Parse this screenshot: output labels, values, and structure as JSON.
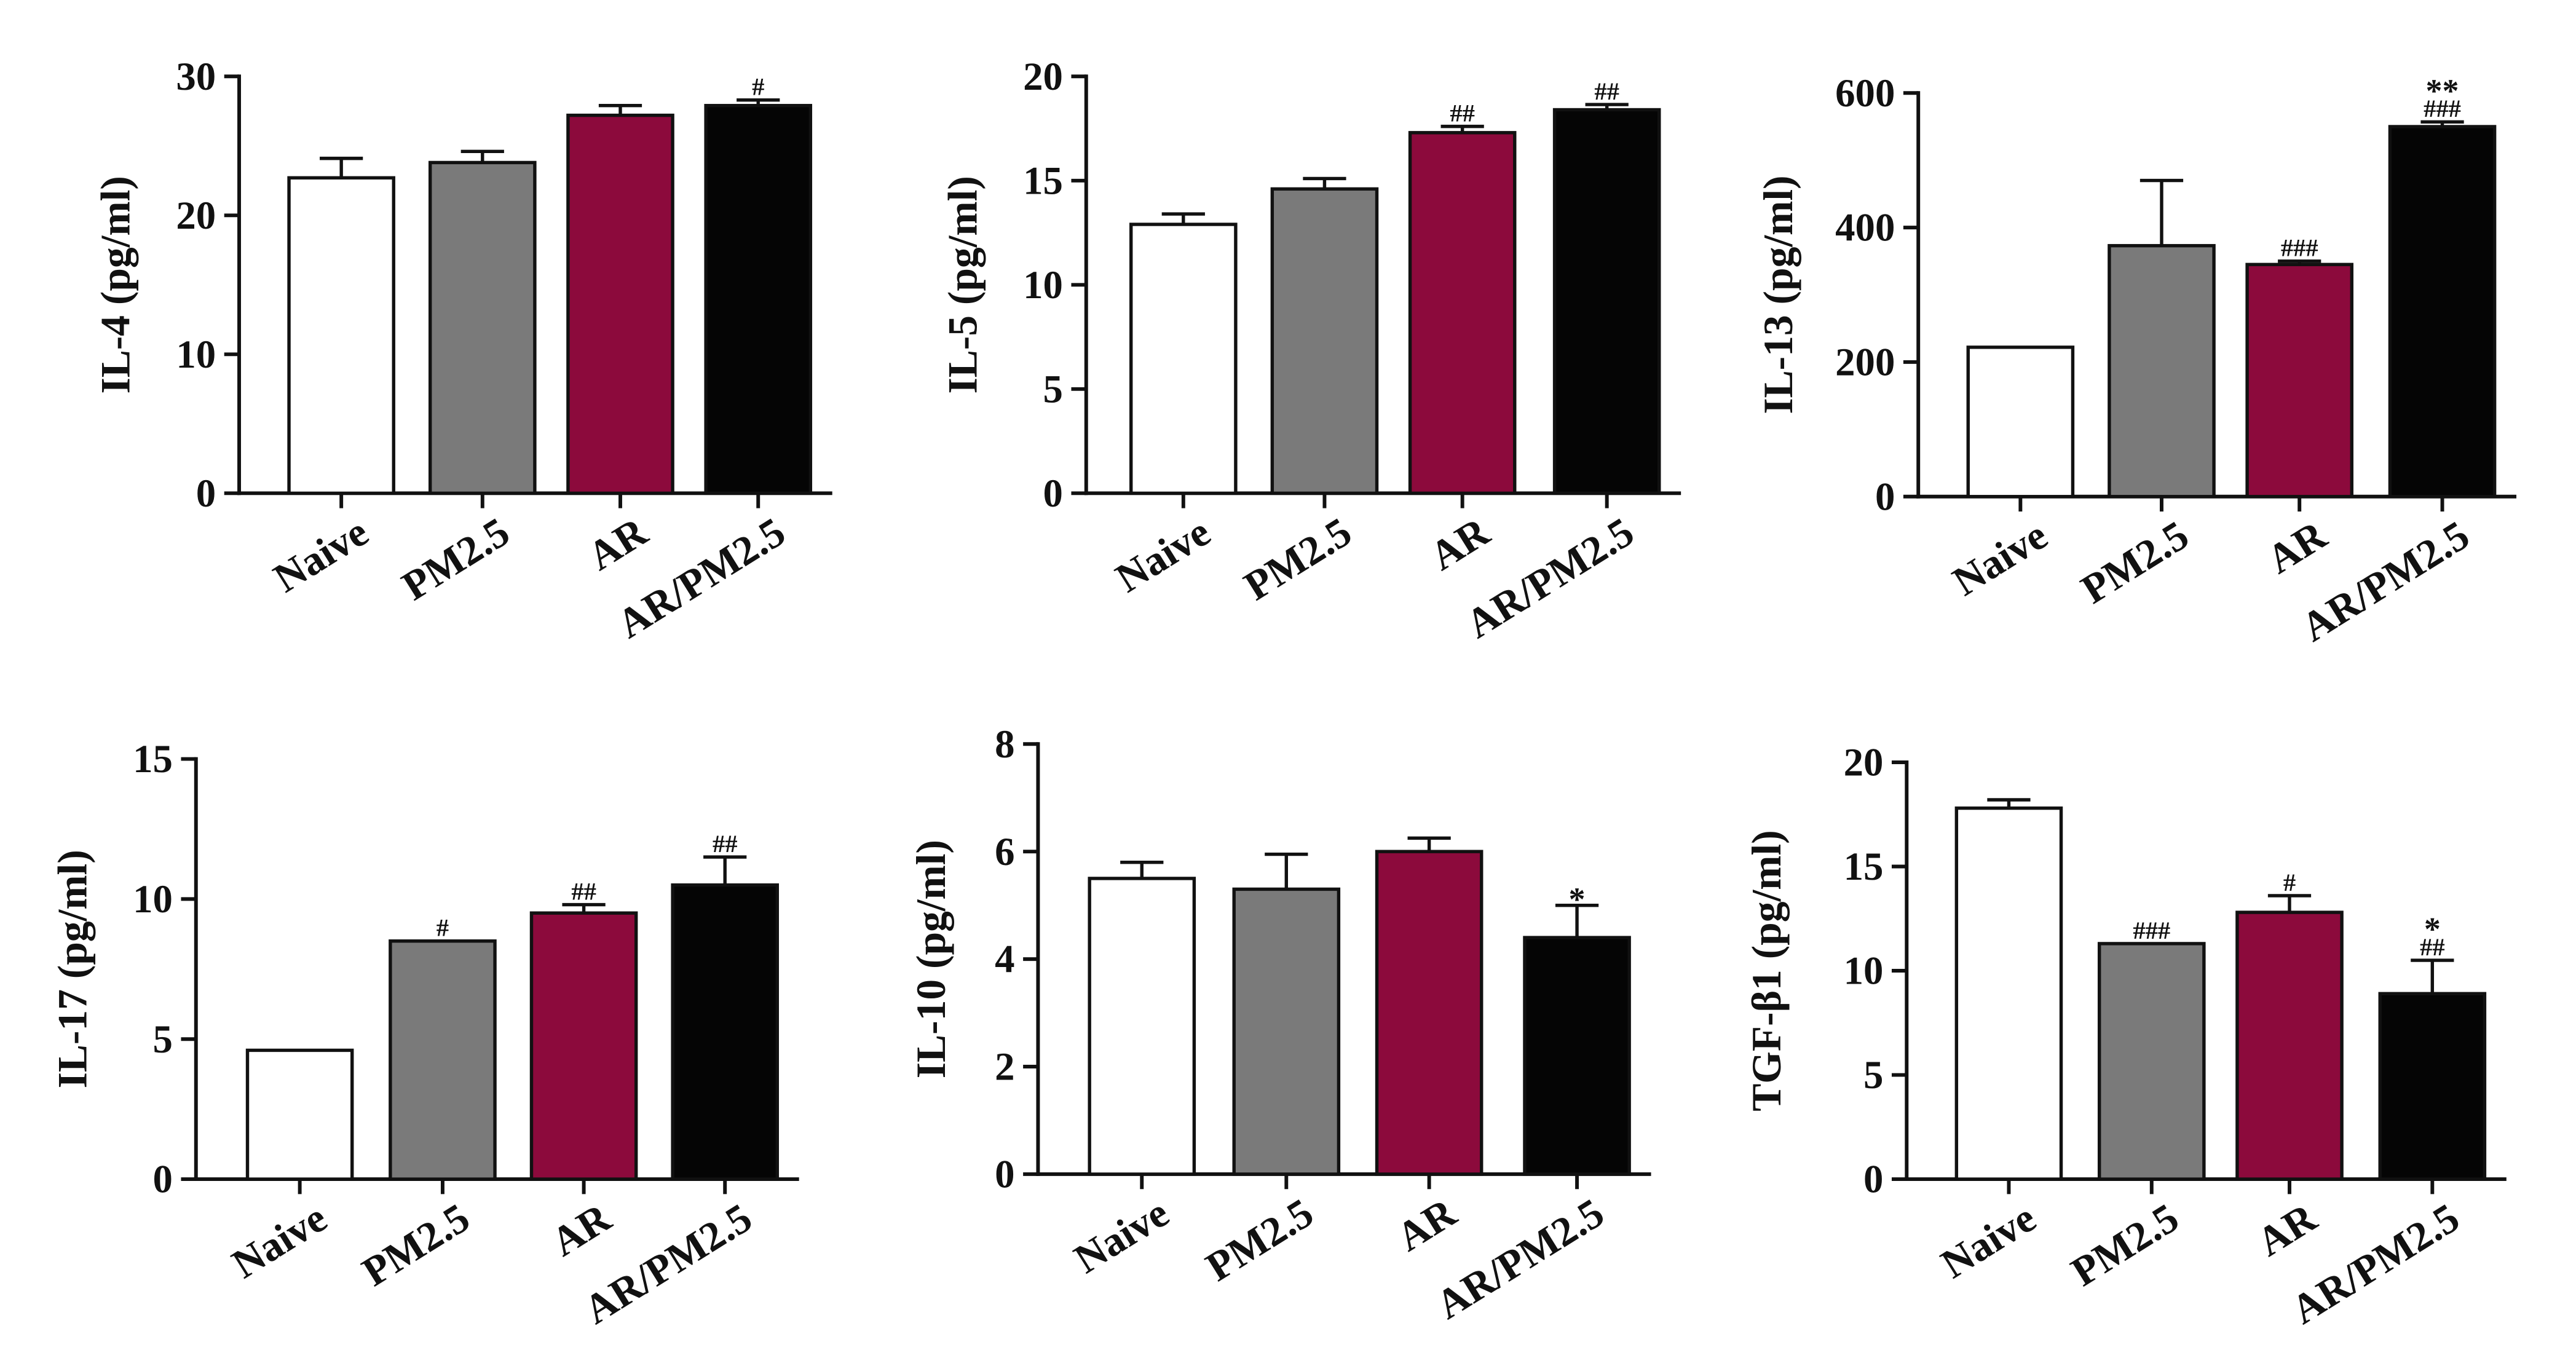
{
  "colors": {
    "Naive": "#ffffff",
    "PM2.5": "#7a7a7a",
    "AR": "#8c0a3c",
    "AR/PM2.5": "#050505",
    "outline": "#111111"
  },
  "chart_data": [
    {
      "type": "bar",
      "ylabel": "IL-4 (pg/ml)",
      "categories": [
        "Naive",
        "PM2.5",
        "AR",
        "AR/PM2.5"
      ],
      "values": [
        22.7,
        23.8,
        27.2,
        27.9
      ],
      "errors": [
        1.4,
        0.8,
        0.7,
        0.4
      ],
      "annotations": [
        "",
        "",
        "",
        "#"
      ],
      "ylim": [
        0,
        30
      ],
      "yticks": [
        0,
        10,
        20,
        30
      ]
    },
    {
      "type": "bar",
      "ylabel": "IL-5 (pg/ml)",
      "categories": [
        "Naive",
        "PM2.5",
        "AR",
        "AR/PM2.5"
      ],
      "values": [
        12.9,
        14.6,
        17.3,
        18.4
      ],
      "errors": [
        0.5,
        0.5,
        0.3,
        0.25
      ],
      "annotations": [
        "",
        "",
        "##",
        "##"
      ],
      "ylim": [
        0,
        20
      ],
      "yticks": [
        0,
        5,
        10,
        15,
        20
      ]
    },
    {
      "type": "bar",
      "ylabel": "IL-13 (pg/ml)",
      "categories": [
        "Naive",
        "PM2.5",
        "AR",
        "AR/PM2.5"
      ],
      "values": [
        222,
        373,
        345,
        550
      ],
      "errors": [
        0,
        97,
        5,
        7
      ],
      "annotations": [
        "",
        "",
        "###",
        "**\n###"
      ],
      "ylim": [
        0,
        600
      ],
      "yticks": [
        0,
        200,
        400,
        600
      ]
    },
    {
      "type": "bar",
      "ylabel": "IL-17 (pg/ml)",
      "categories": [
        "Naive",
        "PM2.5",
        "AR",
        "AR/PM2.5"
      ],
      "values": [
        4.6,
        8.5,
        9.5,
        10.5
      ],
      "errors": [
        0,
        0,
        0.3,
        1.0
      ],
      "annotations": [
        "",
        "#",
        "##",
        "##"
      ],
      "ylim": [
        0,
        15
      ],
      "yticks": [
        0,
        5,
        10,
        15
      ]
    },
    {
      "type": "bar",
      "ylabel": "IL-10 (pg/ml)",
      "categories": [
        "Naive",
        "PM2.5",
        "AR",
        "AR/PM2.5"
      ],
      "values": [
        5.5,
        5.3,
        6.0,
        4.4
      ],
      "errors": [
        0.3,
        0.65,
        0.25,
        0.6
      ],
      "annotations": [
        "",
        "",
        "",
        "*"
      ],
      "ylim": [
        0,
        8
      ],
      "yticks": [
        0,
        2,
        4,
        6,
        8
      ]
    },
    {
      "type": "bar",
      "ylabel": "TGF-β1 (pg/ml)",
      "categories": [
        "Naive",
        "PM2.5",
        "AR",
        "AR/PM2.5"
      ],
      "values": [
        17.8,
        11.3,
        12.8,
        8.9
      ],
      "errors": [
        0.4,
        0,
        0.8,
        1.6
      ],
      "annotations": [
        "",
        "###",
        "#",
        "*\n##"
      ],
      "ylim": [
        0,
        20
      ],
      "yticks": [
        0,
        5,
        10,
        15,
        20
      ]
    }
  ]
}
